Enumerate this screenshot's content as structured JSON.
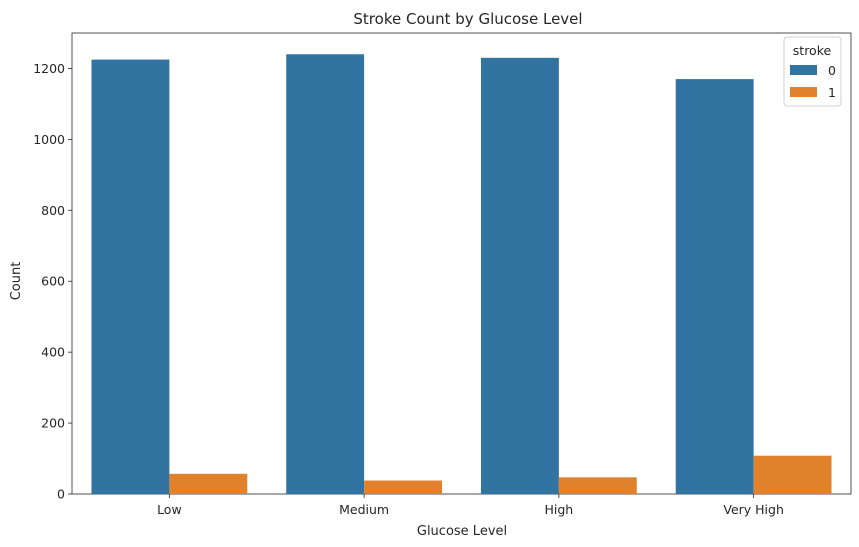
{
  "chart_data": {
    "type": "bar",
    "title": "Stroke Count by Glucose Level",
    "xlabel": "Glucose Level",
    "ylabel": "Count",
    "categories": [
      "Low",
      "Medium",
      "High",
      "Very High"
    ],
    "series": [
      {
        "name": "0",
        "color": "#3274a1",
        "values": [
          1225,
          1240,
          1230,
          1170
        ]
      },
      {
        "name": "1",
        "color": "#e1812c",
        "values": [
          57,
          38,
          47,
          108
        ]
      }
    ],
    "ylim": [
      0,
      1300
    ],
    "yticks": [
      0,
      200,
      400,
      600,
      800,
      1000,
      1200
    ],
    "legend": {
      "title": "stroke",
      "placement": "top-right"
    },
    "grid": false
  }
}
